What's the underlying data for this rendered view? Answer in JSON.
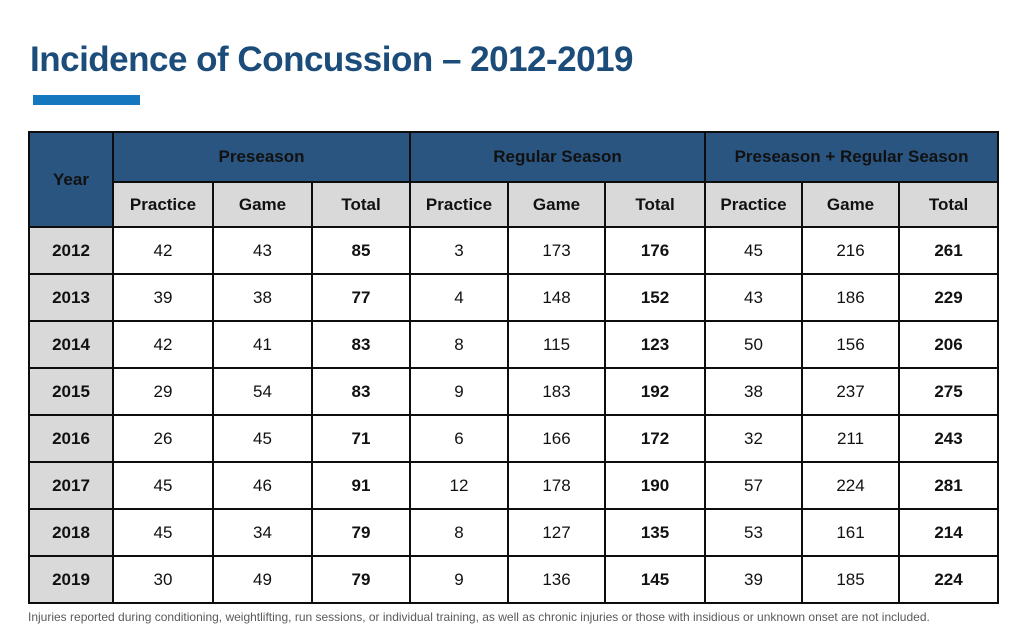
{
  "slide": {
    "title": "Incidence of Concussion – 2012-2019",
    "footnote": "Injuries reported during conditioning, weightlifting, run sessions, or individual training, as well as chronic injuries or those with insidious or unknown onset are not included."
  },
  "colors": {
    "title_text": "#1B4C7A",
    "accent_bar": "#1577BE",
    "header_bg": "#2B5581",
    "header_text": "#FFFFFF",
    "subheader_bg": "#D9D9D9",
    "year_cell_bg": "#D9D9D9",
    "cell_bg": "#FFFFFF",
    "border": "#0D0D0D",
    "footnote_text": "#5A5A5A"
  },
  "chart_data": {
    "type": "table",
    "title": "Incidence of Concussion – 2012-2019",
    "columns": {
      "year_header": "Year",
      "group_headers": [
        "Preseason",
        "Regular Season",
        "Preseason + Regular Season"
      ],
      "sub_headers": [
        "Practice",
        "Game",
        "Total"
      ]
    },
    "rows": [
      {
        "year": "2012",
        "values": [
          42,
          43,
          85,
          3,
          173,
          176,
          45,
          216,
          261
        ]
      },
      {
        "year": "2013",
        "values": [
          39,
          38,
          77,
          4,
          148,
          152,
          43,
          186,
          229
        ]
      },
      {
        "year": "2014",
        "values": [
          42,
          41,
          83,
          8,
          115,
          123,
          50,
          156,
          206
        ]
      },
      {
        "year": "2015",
        "values": [
          29,
          54,
          83,
          9,
          183,
          192,
          38,
          237,
          275
        ]
      },
      {
        "year": "2016",
        "values": [
          26,
          45,
          71,
          6,
          166,
          172,
          32,
          211,
          243
        ]
      },
      {
        "year": "2017",
        "values": [
          45,
          46,
          91,
          12,
          178,
          190,
          57,
          224,
          281
        ]
      },
      {
        "year": "2018",
        "values": [
          45,
          34,
          79,
          8,
          127,
          135,
          53,
          161,
          214
        ]
      },
      {
        "year": "2019",
        "values": [
          30,
          49,
          79,
          9,
          136,
          145,
          39,
          185,
          224
        ]
      }
    ]
  }
}
